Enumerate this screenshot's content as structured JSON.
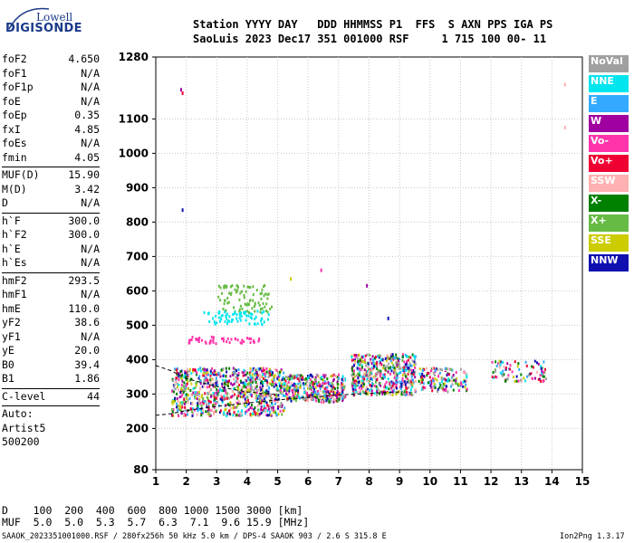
{
  "logo": {
    "line1": "Lowell",
    "line2": "DIGISONDE"
  },
  "header": {
    "labels": "Station YYYY DAY   DDD HHMMSS P1  FFS  S AXN PPS IGA PS",
    "values": "SaoLuis 2023 Dec17 351 001000 RSF     1 715 100 00- 11"
  },
  "params": [
    {
      "name": "foF2",
      "value": "4.650"
    },
    {
      "name": "foF1",
      "value": "N/A"
    },
    {
      "name": "foF1p",
      "value": "N/A"
    },
    {
      "name": "foE",
      "value": "N/A"
    },
    {
      "name": "foEp",
      "value": "0.35"
    },
    {
      "name": "fxI",
      "value": "4.85"
    },
    {
      "name": "foEs",
      "value": "N/A"
    },
    {
      "name": "fmin",
      "value": "4.05"
    },
    {
      "name": "MUF(D)",
      "value": "15.90",
      "sep": true
    },
    {
      "name": "M(D)",
      "value": "3.42"
    },
    {
      "name": "D",
      "value": "N/A"
    },
    {
      "name": "h`F",
      "value": "300.0",
      "sep": true
    },
    {
      "name": "h`F2",
      "value": "300.0"
    },
    {
      "name": "h`E",
      "value": "N/A"
    },
    {
      "name": "h`Es",
      "value": "N/A"
    },
    {
      "name": "hmF2",
      "value": "293.5",
      "sep": true
    },
    {
      "name": "hmF1",
      "value": "N/A"
    },
    {
      "name": "hmE",
      "value": "110.0"
    },
    {
      "name": "yF2",
      "value": "38.6"
    },
    {
      "name": "yF1",
      "value": "N/A"
    },
    {
      "name": "yE",
      "value": "20.0"
    },
    {
      "name": "B0",
      "value": "39.4"
    },
    {
      "name": "B1",
      "value": "1.86"
    },
    {
      "name": "C-level",
      "value": "44",
      "sep": true
    }
  ],
  "autoscale": {
    "line1": "Auto:",
    "line2": "Artist5",
    "line3": "500200"
  },
  "legend": [
    {
      "label": "NoVal",
      "color": "#a0a0a0"
    },
    {
      "label": "NNE",
      "color": "#00e5ee"
    },
    {
      "label": "E",
      "color": "#33aaff"
    },
    {
      "label": "W",
      "color": "#a000a0"
    },
    {
      "label": "Vo-",
      "color": "#ff33aa"
    },
    {
      "label": "Vo+",
      "color": "#ee0033"
    },
    {
      "label": "SSW",
      "color": "#ffb0b0"
    },
    {
      "label": "X-",
      "color": "#008000"
    },
    {
      "label": "X+",
      "color": "#66bb44"
    },
    {
      "label": "SSE",
      "color": "#cccc00"
    },
    {
      "label": "NNW",
      "color": "#1010b0"
    }
  ],
  "chart_data": {
    "type": "scatter",
    "title": "",
    "xlabel": "",
    "ylabel": "",
    "xlim": [
      1,
      15
    ],
    "ylim": [
      80,
      1280
    ],
    "x_ticks": [
      "1",
      "2",
      "3",
      "4",
      "5",
      "6",
      "7",
      "8",
      "9",
      "10",
      "11",
      "12",
      "13",
      "14",
      "15"
    ],
    "y_ticks": [
      "80",
      "200",
      "300",
      "400",
      "500",
      "600",
      "700",
      "800",
      "900",
      "1000",
      "1100",
      "1280"
    ],
    "grid": true,
    "legend_position": "right",
    "clusters": [
      {
        "series": "mixed",
        "x_range": [
          1.5,
          5.2
        ],
        "y_range": [
          240,
          380
        ],
        "n": 900
      },
      {
        "series": "mixed",
        "x_range": [
          5.2,
          7.2
        ],
        "y_range": [
          280,
          360
        ],
        "n": 380
      },
      {
        "series": "mixed",
        "x_range": [
          7.4,
          9.5
        ],
        "y_range": [
          300,
          420
        ],
        "n": 520
      },
      {
        "series": "mixed",
        "x_range": [
          9.6,
          11.2
        ],
        "y_range": [
          310,
          380
        ],
        "n": 150
      },
      {
        "series": "mixed",
        "x_range": [
          12.0,
          13.8
        ],
        "y_range": [
          340,
          400
        ],
        "n": 90
      },
      {
        "series": "X+",
        "x_range": [
          3.0,
          4.8
        ],
        "y_range": [
          540,
          620
        ],
        "n": 90
      },
      {
        "series": "NNE",
        "x_range": [
          2.5,
          4.7
        ],
        "y_range": [
          505,
          545
        ],
        "n": 70
      },
      {
        "series": "Vo-",
        "x_range": [
          2.0,
          4.4
        ],
        "y_range": [
          450,
          470
        ],
        "n": 50
      }
    ],
    "isolated_points": [
      {
        "x": 1.8,
        "y": 1190,
        "series": "W"
      },
      {
        "x": 1.85,
        "y": 1180,
        "series": "Vo+"
      },
      {
        "x": 1.85,
        "y": 840,
        "series": "NNW"
      },
      {
        "x": 14.4,
        "y": 1080,
        "series": "SSW"
      },
      {
        "x": 14.4,
        "y": 1205,
        "series": "SSW"
      },
      {
        "x": 5.4,
        "y": 640,
        "series": "SSE"
      },
      {
        "x": 8.6,
        "y": 525,
        "series": "NNW"
      },
      {
        "x": 7.9,
        "y": 620,
        "series": "W"
      },
      {
        "x": 6.4,
        "y": 665,
        "series": "Vo-"
      }
    ],
    "curves": [
      {
        "name": "upper-dashed",
        "style": "dashed",
        "x": [
          1.0,
          1.5,
          2.0,
          3.0,
          4.0,
          5.0
        ],
        "y": [
          383,
          368,
          345,
          322,
          306,
          298
        ]
      },
      {
        "name": "lower-dashed",
        "style": "dashed",
        "x": [
          1.0,
          1.5,
          2.0,
          3.0,
          4.0,
          5.0,
          6.0,
          7.0,
          8.0,
          9.0
        ],
        "y": [
          238,
          243,
          252,
          264,
          274,
          283,
          290,
          297,
          302,
          306
        ]
      }
    ]
  },
  "muf_table": {
    "d_row": "D    100  200  400  600  800 1000 1500 3000 [km]",
    "muf_row": "MUF  5.0  5.0  5.3  5.7  6.3  7.1  9.6 15.9 [MHz]"
  },
  "footer": {
    "left": "SAAOK_2023351001000.RSF / 280fx256h 50 kHz 5.0 km / DPS-4 SAAOK 903 / 2.6 S 315.8 E",
    "right": "Ion2Png 1.3.17"
  }
}
